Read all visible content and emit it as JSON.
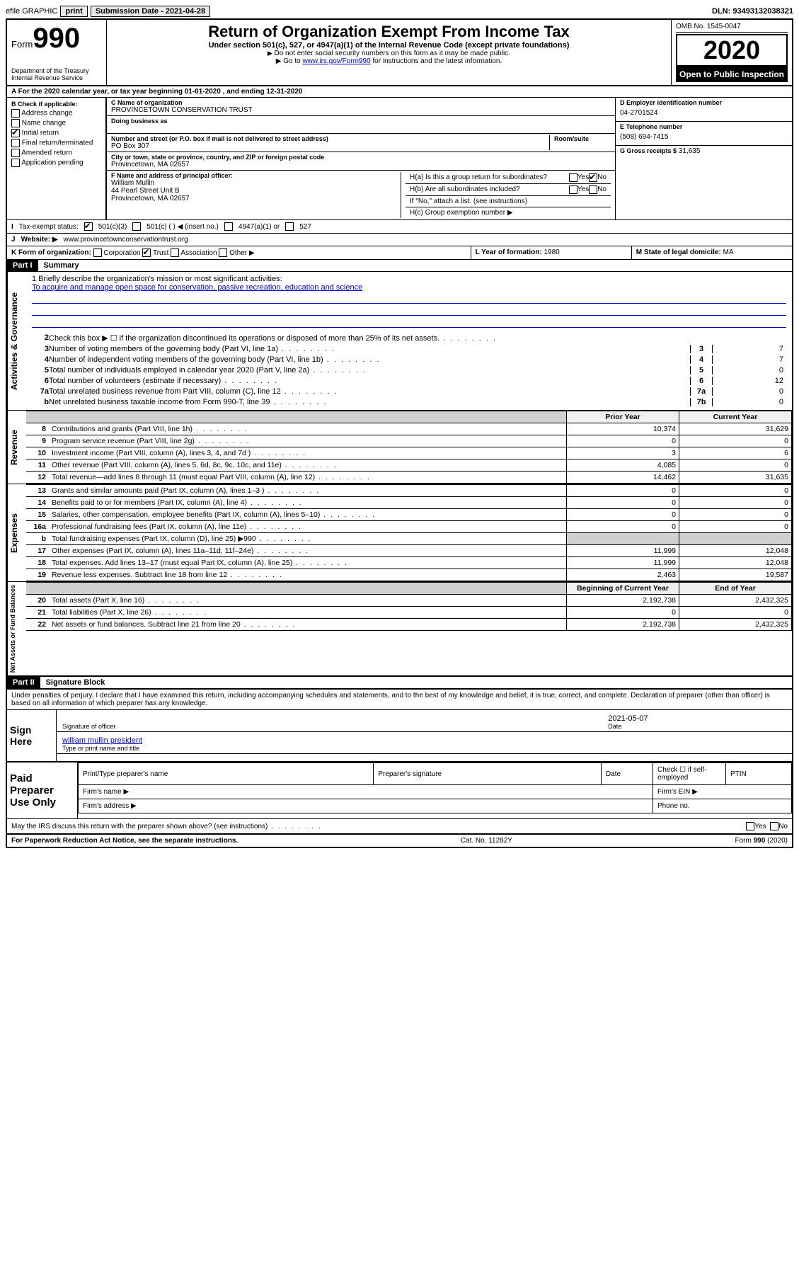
{
  "topbar": {
    "efile": "efile GRAPHIC",
    "print": "print",
    "sub_label": "Submission Date - 2021-04-28",
    "dln": "DLN: 93493132038321"
  },
  "header": {
    "form_word": "Form",
    "form_num": "990",
    "dept": "Department of the Treasury",
    "irs": "Internal Revenue Service",
    "title": "Return of Organization Exempt From Income Tax",
    "sub1": "Under section 501(c), 527, or 4947(a)(1) of the Internal Revenue Code (except private foundations)",
    "sub2": "Do not enter social security numbers on this form as it may be made public.",
    "sub3_pre": "Go to ",
    "sub3_link": "www.irs.gov/Form990",
    "sub3_post": " for instructions and the latest information.",
    "omb": "OMB No. 1545-0047",
    "year": "2020",
    "inspect": "Open to Public Inspection"
  },
  "secA": "For the 2020 calendar year, or tax year beginning 01-01-2020   , and ending 12-31-2020",
  "secB": {
    "label": "B Check if applicable:",
    "items": [
      "Address change",
      "Name change",
      "Initial return",
      "Final return/terminated",
      "Amended return",
      "Application pending"
    ],
    "checked_idx": 2
  },
  "secC": {
    "name_lbl": "C Name of organization",
    "name": "PROVINCETOWN CONSERVATION TRUST",
    "dba_lbl": "Doing business as",
    "addr_lbl": "Number and street (or P.O. box if mail is not delivered to street address)",
    "room_lbl": "Room/suite",
    "addr": "PO Box 307",
    "city_lbl": "City or town, state or province, country, and ZIP or foreign postal code",
    "city": "Provincetown, MA  02657"
  },
  "secD": {
    "lbl": "D Employer identification number",
    "val": "04-2701524"
  },
  "secE": {
    "lbl": "E Telephone number",
    "val": "(508) 694-7415"
  },
  "secG": {
    "lbl": "G Gross receipts $",
    "val": "31,635"
  },
  "secF": {
    "lbl": "F  Name and address of principal officer:",
    "name": "William Mullin",
    "addr1": "44 Pearl Street Unit B",
    "addr2": "Provincetown, MA  02657"
  },
  "secH": {
    "a": "H(a)  Is this a group return for subordinates?",
    "b": "H(b)  Are all subordinates included?",
    "note": "If \"No,\" attach a list. (see instructions)",
    "c": "H(c)  Group exemption number ▶",
    "yes": "Yes",
    "no": "No"
  },
  "rowI": {
    "lbl": "I",
    "text": "Tax-exempt status:",
    "o1": "501(c)(3)",
    "o2": "501(c) (   ) ◀ (insert no.)",
    "o3": "4947(a)(1) or",
    "o4": "527"
  },
  "rowJ": {
    "lbl": "J",
    "text": "Website: ▶",
    "val": "www.provincetownconservationtrust.org"
  },
  "rowK": {
    "lbl": "K Form of organization:",
    "opts": [
      "Corporation",
      "Trust",
      "Association",
      "Other ▶"
    ],
    "checked_idx": 1,
    "L_lbl": "L Year of formation:",
    "L_val": "1980",
    "M_lbl": "M State of legal domicile:",
    "M_val": "MA"
  },
  "partI": {
    "num": "Part I",
    "title": "Summary"
  },
  "mission": {
    "line1_lbl": "1  Briefly describe the organization's mission or most significant activities:",
    "text": "To acquire and manage open space for conservation, passive recreation, education and science"
  },
  "gov_tab": "Activities & Governance",
  "rev_tab": "Revenue",
  "exp_tab": "Expenses",
  "net_tab": "Net Assets or Fund Balances",
  "lines_gov": [
    {
      "n": "2",
      "d": "Check this box ▶ ☐  if the organization discontinued its operations or disposed of more than 25% of its net assets.",
      "box": "",
      "val": ""
    },
    {
      "n": "3",
      "d": "Number of voting members of the governing body (Part VI, line 1a)",
      "box": "3",
      "val": "7"
    },
    {
      "n": "4",
      "d": "Number of independent voting members of the governing body (Part VI, line 1b)",
      "box": "4",
      "val": "7"
    },
    {
      "n": "5",
      "d": "Total number of individuals employed in calendar year 2020 (Part V, line 2a)",
      "box": "5",
      "val": "0"
    },
    {
      "n": "6",
      "d": "Total number of volunteers (estimate if necessary)",
      "box": "6",
      "val": "12"
    },
    {
      "n": "7a",
      "d": "Total unrelated business revenue from Part VIII, column (C), line 12",
      "box": "7a",
      "val": "0"
    },
    {
      "n": "b",
      "d": "Net unrelated business taxable income from Form 990-T, line 39",
      "box": "7b",
      "val": "0"
    }
  ],
  "fin_headers": {
    "prior": "Prior Year",
    "current": "Current Year",
    "begin": "Beginning of Current Year",
    "end": "End of Year"
  },
  "lines_rev": [
    {
      "n": "8",
      "d": "Contributions and grants (Part VIII, line 1h)",
      "p": "10,374",
      "c": "31,629"
    },
    {
      "n": "9",
      "d": "Program service revenue (Part VIII, line 2g)",
      "p": "0",
      "c": "0"
    },
    {
      "n": "10",
      "d": "Investment income (Part VIII, column (A), lines 3, 4, and 7d )",
      "p": "3",
      "c": "6"
    },
    {
      "n": "11",
      "d": "Other revenue (Part VIII, column (A), lines 5, 6d, 8c, 9c, 10c, and 11e)",
      "p": "4,085",
      "c": "0"
    },
    {
      "n": "12",
      "d": "Total revenue—add lines 8 through 11 (must equal Part VIII, column (A), line 12)",
      "p": "14,462",
      "c": "31,635"
    }
  ],
  "lines_exp": [
    {
      "n": "13",
      "d": "Grants and similar amounts paid (Part IX, column (A), lines 1–3 )",
      "p": "0",
      "c": "0"
    },
    {
      "n": "14",
      "d": "Benefits paid to or for members (Part IX, column (A), line 4)",
      "p": "0",
      "c": "0"
    },
    {
      "n": "15",
      "d": "Salaries, other compensation, employee benefits (Part IX, column (A), lines 5–10)",
      "p": "0",
      "c": "0"
    },
    {
      "n": "16a",
      "d": "Professional fundraising fees (Part IX, column (A), line 11e)",
      "p": "0",
      "c": "0"
    },
    {
      "n": "b",
      "d": "Total fundraising expenses (Part IX, column (D), line 25) ▶990",
      "p": "",
      "c": "",
      "gray": true
    },
    {
      "n": "17",
      "d": "Other expenses (Part IX, column (A), lines 11a–11d, 11f–24e)",
      "p": "11,999",
      "c": "12,048"
    },
    {
      "n": "18",
      "d": "Total expenses. Add lines 13–17 (must equal Part IX, column (A), line 25)",
      "p": "11,999",
      "c": "12,048"
    },
    {
      "n": "19",
      "d": "Revenue less expenses. Subtract line 18 from line 12",
      "p": "2,463",
      "c": "19,587"
    }
  ],
  "lines_net": [
    {
      "n": "20",
      "d": "Total assets (Part X, line 16)",
      "p": "2,192,738",
      "c": "2,432,325"
    },
    {
      "n": "21",
      "d": "Total liabilities (Part X, line 26)",
      "p": "0",
      "c": "0"
    },
    {
      "n": "22",
      "d": "Net assets or fund balances. Subtract line 21 from line 20",
      "p": "2,192,738",
      "c": "2,432,325"
    }
  ],
  "partII": {
    "num": "Part II",
    "title": "Signature Block"
  },
  "perjury": "Under penalties of perjury, I declare that I have examined this return, including accompanying schedules and statements, and to the best of my knowledge and belief, it is true, correct, and complete. Declaration of preparer (other than officer) is based on all information of which preparer has any knowledge.",
  "sign": {
    "here": "Sign Here",
    "date": "2021-05-07",
    "sig_lbl": "Signature of officer",
    "date_lbl": "Date",
    "name": "william mullin  president",
    "name_lbl": "Type or print name and title"
  },
  "paid": {
    "left": "Paid Preparer Use Only",
    "h1": "Print/Type preparer's name",
    "h2": "Preparer's signature",
    "h3": "Date",
    "h4": "Check ☐ if self-employed",
    "h5": "PTIN",
    "firm": "Firm's name   ▶",
    "ein": "Firm's EIN ▶",
    "addr": "Firm's address ▶",
    "phone": "Phone no."
  },
  "discuss": {
    "q": "May the IRS discuss this return with the preparer shown above? (see instructions)",
    "yes": "Yes",
    "no": "No"
  },
  "footer": {
    "left": "For Paperwork Reduction Act Notice, see the separate instructions.",
    "mid": "Cat. No. 11282Y",
    "right": "Form 990 (2020)"
  }
}
